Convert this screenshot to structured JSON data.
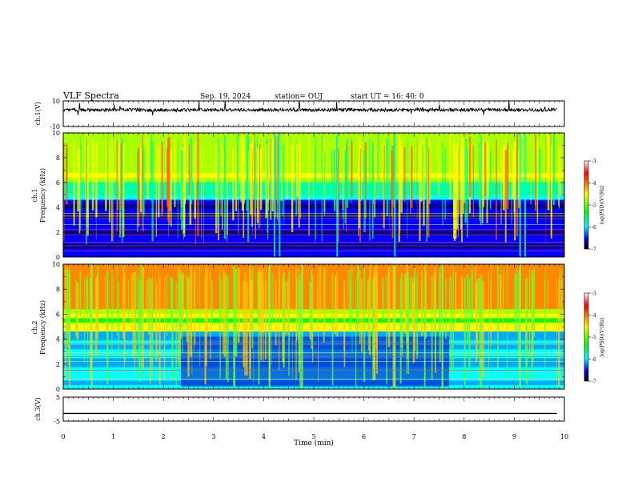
{
  "header": {
    "title": "VLF Spectra",
    "date": "Sep. 19, 2024",
    "station": "station= OUJ",
    "start": "start  UT =   16: 40: 0"
  },
  "colorbar": {
    "label": "log(PSD)(V²/Hz)",
    "ticks": [
      "-3",
      "-4",
      "-5",
      "-6",
      "-7"
    ],
    "colors": [
      "#ffffff",
      "#ff0000",
      "#ffff00",
      "#00ff00",
      "#00ffff",
      "#0000ff",
      "#000000"
    ]
  },
  "chart_data": [
    {
      "type": "line",
      "panel": "ch1-waveform",
      "ylabel": "ch.1(V)",
      "ylim": [
        -10,
        10
      ],
      "yticks": [
        "10",
        "-10"
      ],
      "baseline": 3,
      "xlabel": "Time  (min)",
      "xlim": [
        0,
        10
      ],
      "xticks": [
        "0",
        "1",
        "2",
        "3",
        "4",
        "5",
        "6",
        "7",
        "8",
        "9",
        "10"
      ]
    },
    {
      "type": "heatmap",
      "panel": "ch1-spectrogram",
      "ylabel_top": "ch.1",
      "ylabel": "Frequency  (kHz)",
      "ylim": [
        0,
        10
      ],
      "yticks": [
        "0",
        "2",
        "4",
        "6",
        "8",
        "10"
      ],
      "xlim": [
        0,
        10
      ],
      "colorscale": "log(PSD)(V²/Hz)",
      "zlim": [
        -7,
        -3
      ]
    },
    {
      "type": "heatmap",
      "panel": "ch2-spectrogram",
      "ylabel_top": "ch.2",
      "ylabel": "Frequency  (kHz)",
      "ylim": [
        0,
        10
      ],
      "yticks": [
        "0",
        "2",
        "4",
        "6",
        "8",
        "10"
      ],
      "xlim": [
        0,
        10
      ],
      "colorscale": "log(PSD)(V²/Hz)",
      "zlim": [
        -7,
        -3
      ]
    },
    {
      "type": "line",
      "panel": "ch3-waveform",
      "ylabel": "ch.3(V)",
      "ylim": [
        -5,
        5
      ],
      "yticks": [
        "5",
        "-5"
      ],
      "baseline": -1.8,
      "xlim": [
        0,
        10
      ]
    }
  ]
}
